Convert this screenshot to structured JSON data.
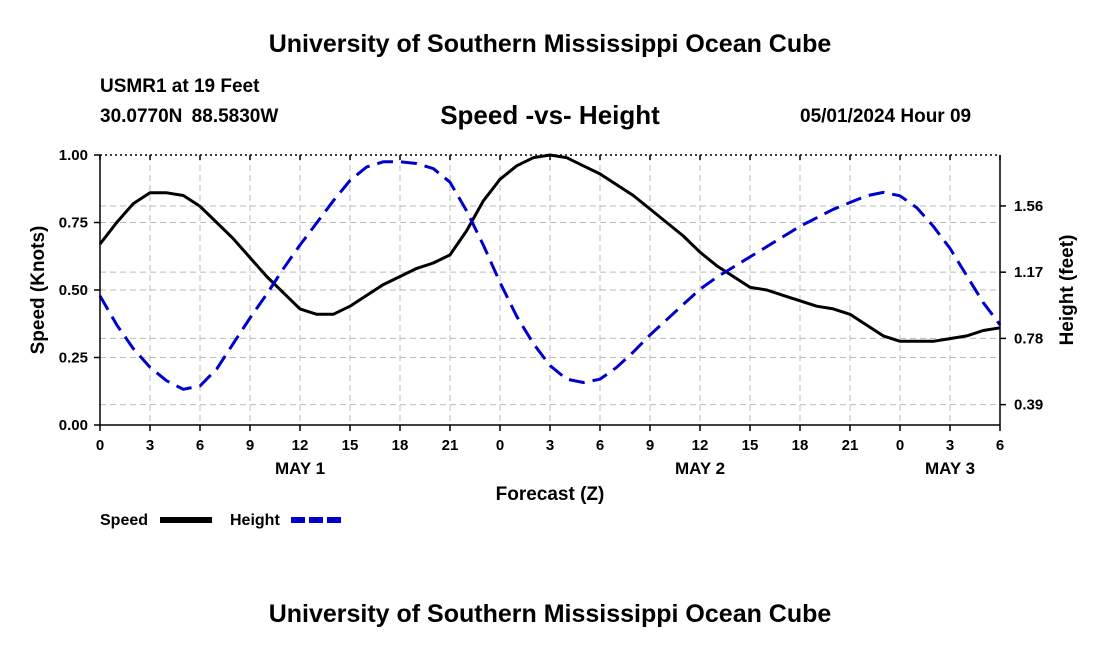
{
  "header": {
    "title": "University of Southern Mississippi Ocean Cube",
    "station": "USMR1 at 19 Feet",
    "coords": "30.0770N  88.5830W",
    "date": "05/01/2024 Hour 09"
  },
  "footer": {
    "title": "University of Southern Mississippi Ocean Cube"
  },
  "chart_data": {
    "type": "line",
    "title": "Speed -vs- Height",
    "xlabel": "Forecast (Z)",
    "ylabel_left": "Speed (Knots)",
    "ylabel_right": "Height (feet)",
    "x_range_hours": [
      0,
      54
    ],
    "x_tick_labels": [
      "0",
      "3",
      "6",
      "9",
      "12",
      "15",
      "18",
      "21",
      "0",
      "3",
      "6",
      "9",
      "12",
      "15",
      "18",
      "21",
      "0",
      "3",
      "6"
    ],
    "x_tick_hours": [
      0,
      3,
      6,
      9,
      12,
      15,
      18,
      21,
      24,
      27,
      30,
      33,
      36,
      39,
      42,
      45,
      48,
      51,
      54
    ],
    "day_labels": [
      {
        "label": "MAY 1",
        "hour": 12
      },
      {
        "label": "MAY 2",
        "hour": 36
      },
      {
        "label": "MAY 3",
        "hour": 51
      }
    ],
    "ylim_left": [
      0,
      1
    ],
    "yticks_left": [
      "0.00",
      "0.25",
      "0.50",
      "0.75",
      "1.00"
    ],
    "ylim_right": [
      0.27,
      1.86
    ],
    "yticks_right": [
      "0.39",
      "0.78",
      "1.17",
      "1.56"
    ],
    "grid": true,
    "series": [
      {
        "name": "Speed",
        "axis": "left",
        "color": "#000000",
        "style": "solid",
        "x": [
          0,
          1,
          2,
          3,
          4,
          5,
          6,
          7,
          8,
          9,
          10,
          11,
          12,
          13,
          14,
          15,
          16,
          17,
          18,
          19,
          20,
          21,
          22,
          23,
          24,
          25,
          26,
          27,
          28,
          29,
          30,
          31,
          32,
          33,
          34,
          35,
          36,
          37,
          38,
          39,
          40,
          41,
          42,
          43,
          44,
          45,
          46,
          47,
          48,
          49,
          50,
          51,
          52,
          53,
          54
        ],
        "values": [
          0.67,
          0.75,
          0.82,
          0.86,
          0.86,
          0.85,
          0.81,
          0.75,
          0.69,
          0.62,
          0.55,
          0.49,
          0.43,
          0.41,
          0.41,
          0.44,
          0.48,
          0.52,
          0.55,
          0.58,
          0.6,
          0.63,
          0.72,
          0.83,
          0.91,
          0.96,
          0.99,
          1.0,
          0.99,
          0.96,
          0.93,
          0.89,
          0.85,
          0.8,
          0.75,
          0.7,
          0.64,
          0.59,
          0.55,
          0.51,
          0.5,
          0.48,
          0.46,
          0.44,
          0.43,
          0.41,
          0.37,
          0.33,
          0.31,
          0.31,
          0.31,
          0.32,
          0.33,
          0.35,
          0.36
        ]
      },
      {
        "name": "Height",
        "axis": "right",
        "color": "#0000cc",
        "style": "dashed",
        "x": [
          0,
          1,
          2,
          3,
          4,
          5,
          6,
          7,
          8,
          9,
          10,
          11,
          12,
          13,
          14,
          15,
          16,
          17,
          18,
          19,
          20,
          21,
          22,
          23,
          24,
          25,
          26,
          27,
          28,
          29,
          30,
          31,
          32,
          33,
          34,
          35,
          36,
          37,
          38,
          39,
          40,
          41,
          42,
          43,
          44,
          45,
          46,
          47,
          48,
          49,
          50,
          51,
          52,
          53,
          54
        ],
        "values": [
          1.03,
          0.86,
          0.72,
          0.61,
          0.53,
          0.48,
          0.5,
          0.6,
          0.75,
          0.9,
          1.04,
          1.19,
          1.33,
          1.46,
          1.59,
          1.71,
          1.79,
          1.82,
          1.82,
          1.81,
          1.78,
          1.7,
          1.53,
          1.33,
          1.11,
          0.91,
          0.75,
          0.62,
          0.54,
          0.52,
          0.54,
          0.61,
          0.7,
          0.8,
          0.89,
          0.98,
          1.07,
          1.14,
          1.2,
          1.26,
          1.32,
          1.38,
          1.44,
          1.49,
          1.54,
          1.58,
          1.62,
          1.64,
          1.62,
          1.55,
          1.44,
          1.31,
          1.15,
          0.99,
          0.86
        ]
      }
    ],
    "legend": [
      {
        "label": "Speed",
        "color": "#000000",
        "style": "solid"
      },
      {
        "label": "Height",
        "color": "#0000cc",
        "style": "dashed"
      }
    ],
    "legend_position": "bottom-left"
  }
}
